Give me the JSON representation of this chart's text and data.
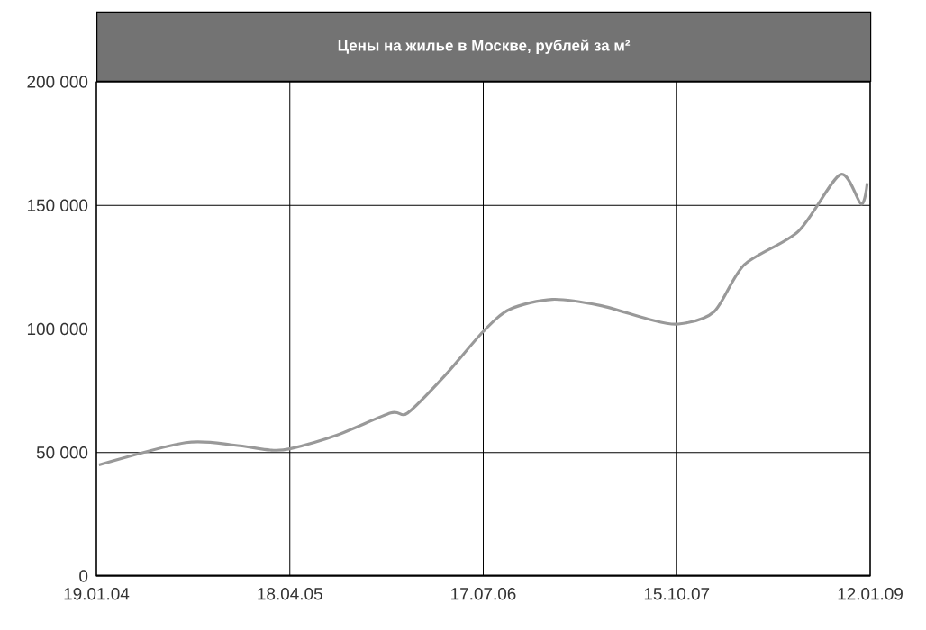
{
  "chart_data": {
    "type": "line",
    "title": "Цены на жилье в Москве, рублей за м²",
    "x": [
      "2004-01-25",
      "2004-08-16",
      "2004-12-08",
      "2005-03-03",
      "2005-04-18",
      "2005-08-06",
      "2005-12-11",
      "2006-01-20",
      "2006-04-17",
      "2006-07-17",
      "2006-09-18",
      "2006-12-26",
      "2007-04-18",
      "2007-08-09",
      "2007-10-19",
      "2008-01-11",
      "2008-03-22",
      "2008-07-27",
      "2008-11-03",
      "2008-12-22",
      "2009-01-05"
    ],
    "values": [
      45000,
      54000,
      53000,
      51000,
      51500,
      57000,
      66000,
      66000,
      81000,
      99000,
      108000,
      112000,
      109500,
      104000,
      102000,
      107000,
      126000,
      139500,
      162500,
      150500,
      159000
    ],
    "color": "#999999",
    "xlim": [
      "2004-01-19",
      "2009-01-12"
    ],
    "xticks": [
      {
        "value": "2004-01-19",
        "label": "19.01.04"
      },
      {
        "value": "2005-04-18",
        "label": "18.04.05"
      },
      {
        "value": "2006-07-17",
        "label": "17.07.06"
      },
      {
        "value": "2007-10-15",
        "label": "15.10.07"
      },
      {
        "value": "2009-01-12",
        "label": "12.01.09"
      }
    ],
    "ylim": [
      0,
      200000
    ],
    "yticks": [
      0,
      {
        "value": 50000,
        "label": "50 000"
      },
      {
        "value": 100000,
        "label": "100 000"
      },
      {
        "value": 150000,
        "label": "150 000"
      },
      {
        "value": 200000,
        "label": "200 000"
      }
    ],
    "grid": true,
    "marker": "none",
    "line_style": "solid"
  }
}
